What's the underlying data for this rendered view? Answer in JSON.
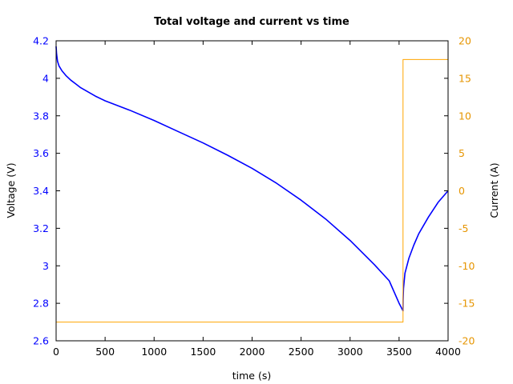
{
  "chart_data": {
    "type": "line",
    "title": "Total voltage and current vs time",
    "xlabel": "time (s)",
    "ylabel": "Voltage (V)",
    "y2label": "Current (A)",
    "xlim": [
      0,
      4000
    ],
    "ylim": [
      2.6,
      4.2
    ],
    "y2lim": [
      -20,
      20
    ],
    "x_ticks": [
      "0",
      "500",
      "1000",
      "1500",
      "2000",
      "2500",
      "3000",
      "3500",
      "4000"
    ],
    "y_ticks": [
      "2.6",
      "2.8",
      "3",
      "3.2",
      "3.4",
      "3.6",
      "3.8",
      "4",
      "4.2"
    ],
    "y2_ticks": [
      "-20",
      "-15",
      "-10",
      "-5",
      "0",
      "5",
      "10",
      "15",
      "20"
    ],
    "grid": false,
    "series": [
      {
        "axis": "left",
        "color": "#0000ff",
        "x": [
          0,
          5,
          15,
          30,
          60,
          100,
          150,
          200,
          250,
          300,
          400,
          500,
          750,
          1000,
          1250,
          1500,
          1750,
          2000,
          2250,
          2500,
          2750,
          3000,
          3250,
          3400,
          3500,
          3540,
          3541,
          3545,
          3560,
          3600,
          3650,
          3700,
          3800,
          3900,
          4000
        ],
        "y": [
          4.17,
          4.13,
          4.09,
          4.065,
          4.04,
          4.015,
          3.99,
          3.97,
          3.95,
          3.935,
          3.905,
          3.88,
          3.83,
          3.775,
          3.715,
          3.655,
          3.59,
          3.52,
          3.44,
          3.35,
          3.25,
          3.135,
          3.005,
          2.92,
          2.8,
          2.76,
          2.82,
          2.88,
          2.96,
          3.04,
          3.11,
          3.17,
          3.26,
          3.34,
          3.4
        ]
      },
      {
        "axis": "right",
        "color": "#ffa500",
        "x": [
          0,
          3540,
          3540,
          4000
        ],
        "y": [
          -17.5,
          -17.5,
          17.5,
          17.5
        ]
      }
    ]
  }
}
